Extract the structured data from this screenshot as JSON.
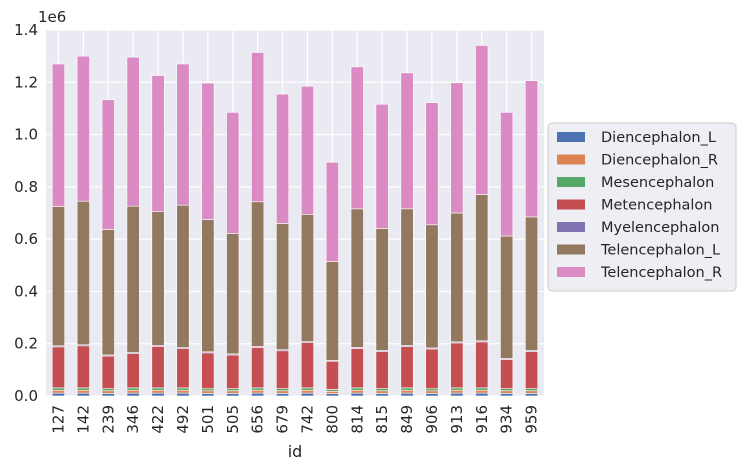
{
  "chart_data": {
    "type": "bar",
    "stacked": true,
    "xlabel": "id",
    "ylabel": "",
    "y_offset_label": "1e6",
    "ylim": [
      0,
      1.4
    ],
    "yticks": [
      0.0,
      0.2,
      0.4,
      0.6,
      0.8,
      1.0,
      1.2,
      1.4
    ],
    "ytick_labels": [
      "0.0",
      "0.2",
      "0.4",
      "0.6",
      "0.8",
      "1.0",
      "1.2",
      "1.4"
    ],
    "grid": true,
    "legend_position": "right",
    "categories": [
      "127",
      "142",
      "239",
      "346",
      "422",
      "492",
      "501",
      "505",
      "656",
      "679",
      "742",
      "800",
      "814",
      "815",
      "849",
      "906",
      "913",
      "916",
      "934",
      "959"
    ],
    "series": [
      {
        "name": "Diencephalon_L",
        "color": "#4c72b0",
        "values": [
          0.011,
          0.011,
          0.01,
          0.011,
          0.011,
          0.011,
          0.01,
          0.01,
          0.011,
          0.01,
          0.011,
          0.009,
          0.011,
          0.01,
          0.011,
          0.01,
          0.011,
          0.011,
          0.01,
          0.01
        ]
      },
      {
        "name": "Diencephalon_R",
        "color": "#dd8452",
        "values": [
          0.011,
          0.011,
          0.01,
          0.011,
          0.011,
          0.011,
          0.01,
          0.01,
          0.011,
          0.01,
          0.011,
          0.009,
          0.011,
          0.01,
          0.011,
          0.01,
          0.011,
          0.011,
          0.01,
          0.01
        ]
      },
      {
        "name": "Mesencephalon",
        "color": "#55a868",
        "values": [
          0.009,
          0.009,
          0.008,
          0.009,
          0.009,
          0.009,
          0.008,
          0.008,
          0.009,
          0.008,
          0.009,
          0.007,
          0.009,
          0.008,
          0.009,
          0.008,
          0.009,
          0.009,
          0.008,
          0.008
        ]
      },
      {
        "name": "Metencephalon",
        "color": "#c44e52",
        "values": [
          0.157,
          0.161,
          0.125,
          0.131,
          0.159,
          0.15,
          0.137,
          0.129,
          0.155,
          0.145,
          0.173,
          0.108,
          0.151,
          0.142,
          0.158,
          0.152,
          0.172,
          0.176,
          0.112,
          0.142
        ]
      },
      {
        "name": "Myelencephalon",
        "color": "#8172b3",
        "values": [
          0.004,
          0.004,
          0.004,
          0.004,
          0.004,
          0.004,
          0.004,
          0.004,
          0.004,
          0.004,
          0.004,
          0.003,
          0.004,
          0.004,
          0.004,
          0.004,
          0.004,
          0.004,
          0.004,
          0.004
        ]
      },
      {
        "name": "Telencephalon_L",
        "color": "#937860",
        "values": [
          0.533,
          0.549,
          0.48,
          0.56,
          0.511,
          0.545,
          0.506,
          0.461,
          0.553,
          0.483,
          0.487,
          0.378,
          0.53,
          0.467,
          0.523,
          0.471,
          0.493,
          0.56,
          0.468,
          0.511
        ]
      },
      {
        "name": "Telencephalon_R",
        "color": "#da8bc3",
        "values": [
          0.545,
          0.555,
          0.496,
          0.57,
          0.521,
          0.54,
          0.522,
          0.463,
          0.571,
          0.495,
          0.49,
          0.38,
          0.543,
          0.475,
          0.52,
          0.467,
          0.498,
          0.57,
          0.473,
          0.521
        ]
      }
    ]
  }
}
